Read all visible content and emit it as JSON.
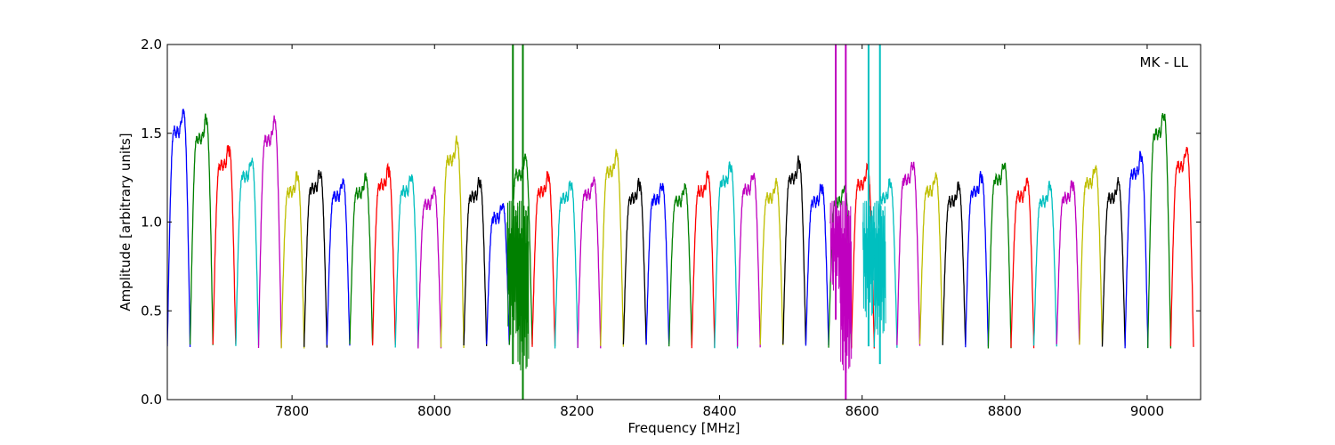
{
  "chart_data": {
    "type": "line",
    "title": "",
    "annotation": "MK - LL",
    "xlabel": "Frequency [MHz]",
    "ylabel": "Amplitude [arbitrary units]",
    "xlim": [
      7625,
      9075
    ],
    "ylim": [
      0.0,
      2.0
    ],
    "xticks": [
      7800,
      8000,
      8200,
      8400,
      8600,
      8800,
      9000
    ],
    "xtick_labels": [
      "7800",
      "8000",
      "8200",
      "8400",
      "8600",
      "8800",
      "9000"
    ],
    "yticks": [
      0.0,
      0.5,
      1.0,
      1.5,
      2.0
    ],
    "ytick_labels": [
      "0.0",
      "0.5",
      "1.0",
      "1.5",
      "2.0"
    ],
    "grid": false,
    "legend": "none",
    "color_cycle": [
      "#0000ff",
      "#008000",
      "#ff0000",
      "#00bfbf",
      "#bf00bf",
      "#bfbf00",
      "#000000"
    ],
    "channel_bandwidth_mhz": 32,
    "channel_start_mhz": 7625,
    "n_channels": 45,
    "channel_peaks": [
      1.62,
      1.58,
      1.42,
      1.35,
      1.57,
      1.26,
      1.28,
      1.23,
      1.25,
      1.3,
      1.26,
      1.18,
      1.45,
      1.23,
      1.1,
      1.36,
      1.26,
      1.22,
      1.24,
      1.38,
      1.22,
      1.21,
      1.2,
      1.26,
      1.32,
      1.27,
      1.22,
      1.34,
      1.2,
      1.2,
      1.3,
      1.22,
      1.33,
      1.26,
      1.2,
      1.26,
      1.33,
      1.23,
      1.2,
      1.22,
      1.31,
      1.22,
      1.37,
      1.61,
      1.41
    ],
    "channel_edge_min": 0.3,
    "rfi_spikes": [
      {
        "freq": 8110,
        "color": "#008000",
        "top": 2.0,
        "bottom": 0.2
      },
      {
        "freq": 8124,
        "color": "#008000",
        "top": 2.0,
        "bottom": 0.0
      },
      {
        "freq": 8563,
        "color": "#bf00bf",
        "top": 2.0,
        "bottom": 0.45
      },
      {
        "freq": 8577,
        "color": "#bf00bf",
        "top": 2.0,
        "bottom": 0.0
      },
      {
        "freq": 8609,
        "color": "#00bfbf",
        "top": 2.0,
        "bottom": 0.3
      },
      {
        "freq": 8625,
        "color": "#00bfbf",
        "top": 2.0,
        "bottom": 0.2
      }
    ]
  }
}
